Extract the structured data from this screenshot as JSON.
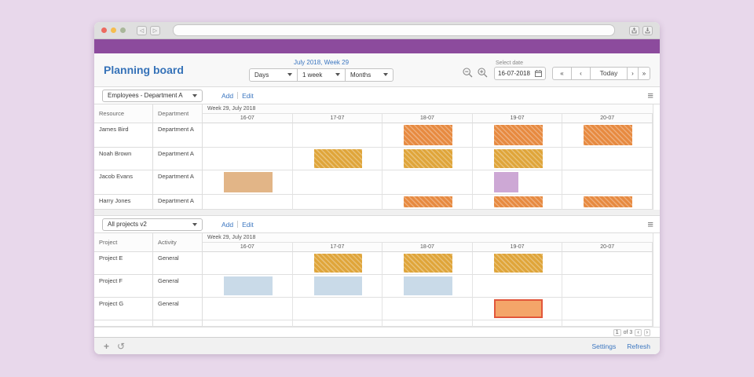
{
  "browser": {
    "url_value": ""
  },
  "header": {
    "title": "Planning board",
    "period_label": "July 2018, Week 29",
    "view_options": [
      "Days",
      "1 week",
      "Months"
    ],
    "select_date_label": "Select date",
    "date_value": "16-07-2018",
    "nav_first": "«",
    "nav_prev": "‹",
    "today_label": "Today",
    "nav_next": "›",
    "nav_last": "»"
  },
  "colors": {
    "accent_blue": "#3B76C0",
    "purple_bar": "#8C4B9D"
  },
  "block_types": {
    "orange": {
      "color": "#E78A40",
      "hatch": true
    },
    "gold": {
      "color": "#DFA53A",
      "hatch": true
    },
    "tan": {
      "color": "#E2B587",
      "hatch": false
    },
    "purple": {
      "color": "#CDA8D5",
      "hatch": false
    },
    "blue": {
      "color": "#C9DAE8",
      "hatch": false
    },
    "selected": {
      "color": "#F4A569",
      "hatch": false,
      "border": "#E2573B"
    }
  },
  "resources_panel": {
    "filter_value": "Employees - Department A",
    "add_label": "Add",
    "edit_label": "Edit",
    "menu_icon": "≡",
    "week_header": "Week 29, July 2018",
    "columns": [
      "Resource",
      "Department"
    ],
    "days": [
      "16-07",
      "17-07",
      "18-07",
      "19-07",
      "20-07"
    ],
    "rows": [
      {
        "cells": [
          "James Bird",
          "Department A"
        ],
        "size": "tall",
        "blocks": [
          {
            "day": 2,
            "type": "orange"
          },
          {
            "day": 3,
            "type": "orange"
          },
          {
            "day": 4,
            "type": "orange"
          }
        ]
      },
      {
        "cells": [
          "Noah Brown",
          "Department A"
        ],
        "size": "normal",
        "blocks": [
          {
            "day": 1,
            "type": "gold"
          },
          {
            "day": 2,
            "type": "gold"
          },
          {
            "day": 3,
            "type": "gold"
          }
        ]
      },
      {
        "cells": [
          "Jacob Evans",
          "Department A"
        ],
        "size": "tall",
        "blocks": [
          {
            "day": 0,
            "type": "tan"
          },
          {
            "day": 3,
            "type": "purple",
            "span": 0.27
          }
        ]
      },
      {
        "cells": [
          "Harry Jones",
          "Department A"
        ],
        "size": "short",
        "blocks": [
          {
            "day": 2,
            "type": "orange"
          },
          {
            "day": 3,
            "type": "orange"
          },
          {
            "day": 4,
            "type": "orange"
          }
        ]
      }
    ]
  },
  "projects_panel": {
    "filter_value": "All projects v2",
    "add_label": "Add",
    "edit_label": "Edit",
    "menu_icon": "≡",
    "week_header": "Week 29, July 2018",
    "columns": [
      "Project",
      "Activity"
    ],
    "days": [
      "16-07",
      "17-07",
      "18-07",
      "19-07",
      "20-07"
    ],
    "rows": [
      {
        "cells": [
          "Project E",
          "General"
        ],
        "size": "normal",
        "blocks": [
          {
            "day": 1,
            "type": "gold"
          },
          {
            "day": 2,
            "type": "gold"
          },
          {
            "day": 3,
            "type": "gold"
          }
        ]
      },
      {
        "cells": [
          "Project F",
          "General"
        ],
        "size": "normal",
        "blocks": [
          {
            "day": 0,
            "type": "blue"
          },
          {
            "day": 1,
            "type": "blue"
          },
          {
            "day": 2,
            "type": "blue"
          }
        ]
      },
      {
        "cells": [
          "Project G",
          "General"
        ],
        "size": "normal",
        "blocks": [
          {
            "day": 3,
            "type": "selected"
          }
        ]
      },
      {
        "cells": [
          "",
          ""
        ],
        "size": "spacer",
        "blocks": []
      }
    ],
    "pagination": {
      "current_page": "1",
      "of_label": "of 3",
      "prev": "‹",
      "next": "›"
    }
  },
  "toolbar": {
    "add_icon": "+",
    "undo_icon": "↺"
  },
  "footer": {
    "settings_label": "Settings",
    "refresh_label": "Refresh"
  }
}
